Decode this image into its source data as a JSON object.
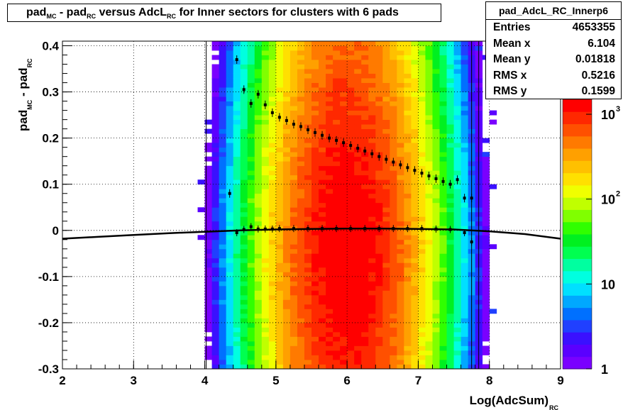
{
  "title": {
    "parts": [
      {
        "text": "pad"
      },
      {
        "sub": "MC"
      },
      {
        "text": " - pad"
      },
      {
        "sub": "RC"
      },
      {
        "text": " versus AdcL"
      },
      {
        "sub": "RC"
      },
      {
        "text": "  for Inner sectors for clusters with 6 pads"
      }
    ]
  },
  "stats": {
    "name": "pad_AdcL_RC_Innerp6",
    "rows": [
      {
        "label": "Entries",
        "value": "4653355"
      },
      {
        "label": "Mean x",
        "value": "6.104"
      },
      {
        "label": "Mean y",
        "value": "0.01818"
      },
      {
        "label": "RMS x",
        "value": "0.5216"
      },
      {
        "label": "RMS y",
        "value": "0.1599"
      }
    ]
  },
  "chart_data": {
    "type": "heatmap",
    "xlabel": "Log(AdcSum)",
    "xlabel_sub": "RC",
    "ylabel": "pad",
    "ylabel_sub1": "MC",
    "ylabel_mid": " - pad",
    "ylabel_sub2": "RC",
    "xlim": [
      2,
      9
    ],
    "ylim": [
      -0.3,
      0.41
    ],
    "x_ticks": [
      "2",
      "3",
      "4",
      "5",
      "6",
      "7",
      "8",
      "9"
    ],
    "y_ticks": [
      "-0.3",
      "-0.2",
      "-0.1",
      "0",
      "0.1",
      "0.2",
      "0.3",
      "0.4"
    ],
    "grid": true,
    "colorbar": {
      "scale": "log",
      "min": 1,
      "max": 1500,
      "labels": [
        {
          "text": "1",
          "value": 1
        },
        {
          "text": "10",
          "value": 10
        },
        {
          "text": "10",
          "sup": "2",
          "value": 100
        },
        {
          "text": "10",
          "sup": "3",
          "value": 1000
        }
      ],
      "colors": [
        "#7a00ff",
        "#5a00ff",
        "#3a10ff",
        "#2040ff",
        "#0070ff",
        "#00a8ff",
        "#00e0ff",
        "#00ffe0",
        "#00ffa0",
        "#00ff50",
        "#00f020",
        "#30ff00",
        "#80ff00",
        "#c0ff00",
        "#f0ff00",
        "#ffe000",
        "#ffc000",
        "#ffa000",
        "#ff7a00",
        "#ff5000",
        "#ff2800",
        "#ff0000"
      ]
    },
    "density": {
      "x_center": 6.0,
      "x_sigma": 0.52,
      "y_center": -0.05,
      "y_sigma": 0.24,
      "peak": 1500
    },
    "profile_mean": {
      "x": [
        2.0,
        2.5,
        3.0,
        3.5,
        4.0,
        4.5,
        5.0,
        5.5,
        6.0,
        6.5,
        7.0,
        7.5,
        8.0,
        8.5,
        9.0
      ],
      "y": [
        -0.018,
        -0.014,
        -0.01,
        -0.006,
        -0.003,
        0.0,
        0.002,
        0.003,
        0.004,
        0.004,
        0.003,
        0.002,
        -0.002,
        -0.008,
        -0.018
      ]
    },
    "profile_points": {
      "x": [
        4.35,
        4.45,
        4.55,
        4.65,
        4.75,
        4.85,
        4.95,
        5.05,
        5.15,
        5.25,
        5.35,
        5.45,
        5.55,
        5.65,
        5.75,
        5.85,
        5.95,
        6.05,
        6.15,
        6.25,
        6.35,
        6.45,
        6.55,
        6.65,
        6.75,
        6.85,
        6.95,
        7.05,
        7.15,
        7.25,
        7.35,
        7.45,
        7.55,
        7.65,
        7.75
      ],
      "y": [
        0.08,
        0.37,
        0.305,
        0.275,
        0.295,
        0.272,
        0.255,
        0.245,
        0.238,
        0.23,
        0.225,
        0.218,
        0.212,
        0.206,
        0.2,
        0.195,
        0.19,
        0.184,
        0.178,
        0.172,
        0.166,
        0.16,
        0.154,
        0.148,
        0.142,
        0.136,
        0.13,
        0.124,
        0.118,
        0.112,
        0.106,
        0.1,
        0.11,
        0.07,
        0.07
      ]
    },
    "mean_points": {
      "x": [
        4.45,
        4.55,
        4.65,
        4.75,
        4.85,
        4.95,
        5.05,
        5.25,
        5.45,
        5.65,
        5.85,
        6.05,
        6.25,
        6.45,
        6.65,
        6.85,
        7.05,
        7.25,
        7.45,
        7.65,
        7.75
      ],
      "y": [
        -0.005,
        0.002,
        0.008,
        0.003,
        0.003,
        0.003,
        0.004,
        0.004,
        0.004,
        0.004,
        0.004,
        0.004,
        0.004,
        0.004,
        0.004,
        0.004,
        0.004,
        0.003,
        0.002,
        -0.005,
        -0.025
      ]
    },
    "vertical_lines_x": [
      4.02,
      7.75,
      7.85
    ]
  }
}
